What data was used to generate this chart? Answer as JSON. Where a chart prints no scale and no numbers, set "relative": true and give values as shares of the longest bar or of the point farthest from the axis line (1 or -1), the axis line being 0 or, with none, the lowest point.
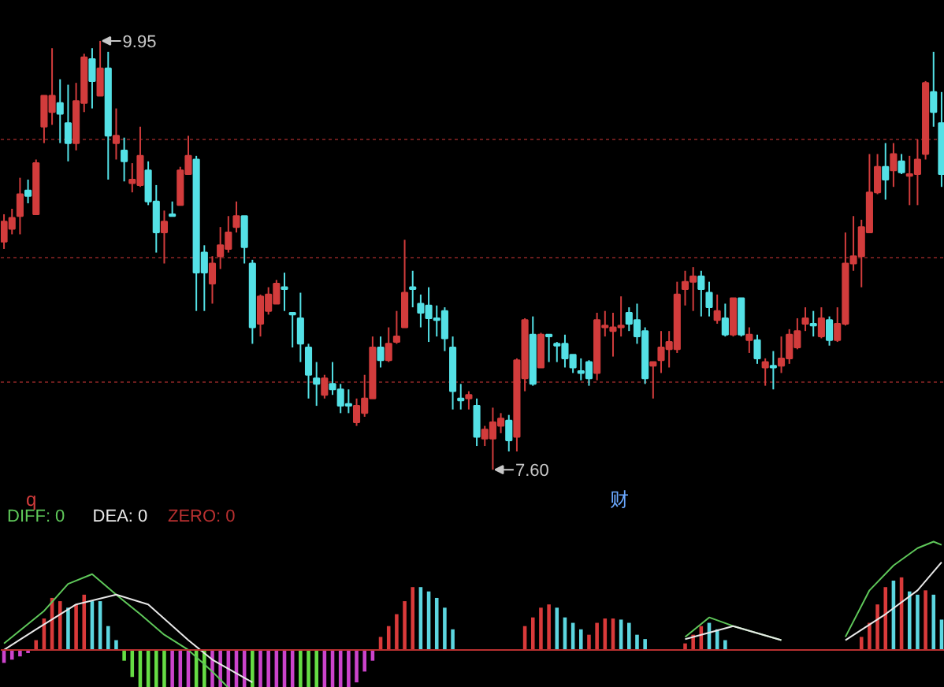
{
  "chart_data": [
    {
      "type": "candlestick",
      "categories": [
        null,
        null,
        null,
        null,
        null,
        null,
        null,
        null,
        null,
        null,
        null,
        null,
        null,
        null,
        null,
        null,
        null,
        null,
        null,
        null,
        null,
        null,
        null,
        null,
        null,
        null,
        null,
        null,
        null,
        null,
        null,
        null,
        null,
        null,
        null,
        null,
        null,
        null,
        null,
        null,
        null,
        null,
        null,
        null,
        null,
        null,
        null,
        null,
        null,
        null,
        null,
        null,
        null,
        null,
        null,
        null,
        null,
        null,
        null,
        null,
        null,
        null,
        null,
        null,
        null,
        null,
        null,
        null,
        null,
        null,
        null,
        null,
        null,
        null,
        null,
        null,
        null,
        null,
        null,
        null,
        null,
        null,
        null,
        null,
        null,
        null,
        null,
        null,
        null,
        null,
        null,
        null,
        null,
        null,
        null,
        null,
        null,
        null,
        null,
        null,
        null,
        null,
        null,
        null,
        null,
        null,
        null,
        null,
        null,
        null,
        null,
        null,
        null,
        null,
        null,
        null,
        null,
        null
      ],
      "ohlc": [
        [
          8.85,
          9.0,
          8.81,
          8.96
        ],
        [
          8.92,
          9.03,
          8.89,
          8.98
        ],
        [
          8.99,
          9.2,
          8.89,
          9.11
        ],
        [
          9.13,
          9.19,
          9.06,
          9.1
        ],
        [
          9.0,
          9.3,
          9.0,
          9.28
        ],
        [
          9.48,
          9.65,
          9.39,
          9.65
        ],
        [
          9.56,
          9.91,
          9.49,
          9.65
        ],
        [
          9.61,
          9.74,
          9.39,
          9.55
        ],
        [
          9.5,
          9.71,
          9.29,
          9.39
        ],
        [
          9.39,
          9.72,
          9.35,
          9.62
        ],
        [
          9.61,
          9.88,
          9.56,
          9.86
        ],
        [
          9.85,
          9.91,
          9.58,
          9.73
        ],
        [
          9.65,
          9.95,
          9.65,
          9.8
        ],
        [
          9.8,
          9.89,
          9.19,
          9.43
        ],
        [
          9.39,
          9.58,
          9.3,
          9.43
        ],
        [
          9.35,
          9.42,
          9.18,
          9.29
        ],
        [
          9.17,
          9.28,
          9.12,
          9.19
        ],
        [
          9.16,
          9.48,
          9.15,
          9.32
        ],
        [
          9.24,
          9.29,
          9.05,
          9.07
        ],
        [
          9.07,
          9.16,
          8.79,
          8.9
        ],
        [
          8.9,
          9.02,
          8.73,
          8.96
        ],
        [
          9.0,
          9.07,
          8.99,
          8.99
        ],
        [
          9.05,
          9.26,
          9.05,
          9.24
        ],
        [
          9.22,
          9.43,
          9.22,
          9.32
        ],
        [
          9.3,
          9.32,
          8.47,
          8.68
        ],
        [
          8.79,
          8.83,
          8.47,
          8.68
        ],
        [
          8.62,
          8.77,
          8.51,
          8.73
        ],
        [
          8.77,
          8.93,
          8.7,
          8.83
        ],
        [
          8.81,
          8.99,
          8.79,
          8.9
        ],
        [
          8.93,
          9.07,
          8.9,
          8.99
        ],
        [
          8.99,
          8.99,
          8.73,
          8.82
        ],
        [
          8.73,
          8.75,
          8.29,
          8.38
        ],
        [
          8.4,
          8.56,
          8.33,
          8.55
        ],
        [
          8.47,
          8.6,
          8.45,
          8.56
        ],
        [
          8.51,
          8.64,
          8.51,
          8.62
        ],
        [
          8.6,
          8.68,
          8.47,
          8.59
        ],
        [
          8.46,
          8.46,
          8.27,
          8.45
        ],
        [
          8.43,
          8.57,
          8.19,
          8.29
        ],
        [
          8.27,
          8.29,
          7.99,
          8.12
        ],
        [
          8.1,
          8.19,
          7.95,
          8.07
        ],
        [
          8.01,
          8.12,
          7.99,
          8.1
        ],
        [
          8.07,
          8.19,
          8.01,
          8.04
        ],
        [
          8.04,
          8.07,
          7.91,
          7.95
        ],
        [
          7.96,
          8.04,
          7.91,
          7.95
        ],
        [
          7.86,
          7.99,
          7.84,
          7.95
        ],
        [
          7.91,
          8.12,
          7.89,
          7.99
        ],
        [
          7.99,
          8.33,
          7.99,
          8.27
        ],
        [
          8.27,
          8.33,
          8.16,
          8.2
        ],
        [
          8.2,
          8.38,
          8.19,
          8.29
        ],
        [
          8.3,
          8.47,
          8.29,
          8.33
        ],
        [
          8.38,
          8.86,
          8.38,
          8.57
        ],
        [
          8.6,
          8.69,
          8.49,
          8.59
        ],
        [
          8.51,
          8.56,
          8.38,
          8.46
        ],
        [
          8.5,
          8.6,
          8.3,
          8.43
        ],
        [
          8.43,
          8.5,
          8.33,
          8.42
        ],
        [
          8.47,
          8.49,
          8.25,
          8.32
        ],
        [
          8.27,
          8.33,
          7.93,
          8.03
        ],
        [
          7.99,
          8.07,
          7.93,
          7.98
        ],
        [
          7.99,
          8.03,
          7.93,
          8.01
        ],
        [
          7.95,
          7.99,
          7.73,
          7.78
        ],
        [
          7.77,
          7.84,
          7.73,
          7.82
        ],
        [
          7.77,
          7.94,
          7.6,
          7.86
        ],
        [
          7.84,
          7.91,
          7.8,
          7.88
        ],
        [
          7.87,
          7.9,
          7.7,
          7.76
        ],
        [
          7.78,
          8.21,
          7.7,
          8.2
        ],
        [
          8.1,
          8.43,
          8.03,
          8.42
        ],
        [
          8.34,
          8.44,
          8.06,
          8.07
        ],
        [
          8.16,
          8.35,
          8.16,
          8.34
        ],
        [
          8.34,
          8.34,
          8.19,
          8.33
        ],
        [
          8.29,
          8.3,
          8.19,
          8.28
        ],
        [
          8.29,
          8.34,
          8.16,
          8.21
        ],
        [
          8.23,
          8.23,
          8.13,
          8.16
        ],
        [
          8.14,
          8.21,
          8.09,
          8.13
        ],
        [
          8.19,
          8.2,
          8.06,
          8.1
        ],
        [
          8.13,
          8.46,
          8.09,
          8.42
        ],
        [
          8.38,
          8.47,
          8.33,
          8.39
        ],
        [
          8.36,
          8.46,
          8.22,
          8.38
        ],
        [
          8.38,
          8.55,
          8.33,
          8.39
        ],
        [
          8.46,
          8.49,
          8.36,
          8.4
        ],
        [
          8.42,
          8.51,
          8.29,
          8.33
        ],
        [
          8.36,
          8.38,
          8.07,
          8.1
        ],
        [
          8.17,
          8.19,
          7.99,
          8.19
        ],
        [
          8.2,
          8.36,
          8.13,
          8.27
        ],
        [
          8.26,
          8.36,
          8.16,
          8.3
        ],
        [
          8.26,
          8.63,
          8.24,
          8.56
        ],
        [
          8.59,
          8.69,
          8.5,
          8.63
        ],
        [
          8.63,
          8.71,
          8.47,
          8.66
        ],
        [
          8.66,
          8.69,
          8.44,
          8.59
        ],
        [
          8.57,
          8.63,
          8.44,
          8.49
        ],
        [
          8.42,
          8.56,
          8.4,
          8.47
        ],
        [
          8.43,
          8.51,
          8.33,
          8.34
        ],
        [
          8.34,
          8.54,
          8.33,
          8.54
        ],
        [
          8.54,
          8.54,
          8.33,
          8.34
        ],
        [
          8.31,
          8.38,
          8.24,
          8.34
        ],
        [
          8.31,
          8.34,
          8.18,
          8.21
        ],
        [
          8.16,
          8.21,
          8.06,
          8.19
        ],
        [
          8.17,
          8.25,
          8.04,
          8.16
        ],
        [
          8.17,
          8.33,
          8.13,
          8.21
        ],
        [
          8.21,
          8.37,
          8.18,
          8.34
        ],
        [
          8.27,
          8.43,
          8.26,
          8.36
        ],
        [
          8.4,
          8.49,
          8.36,
          8.43
        ],
        [
          8.4,
          8.47,
          8.33,
          8.39
        ],
        [
          8.33,
          8.49,
          8.32,
          8.43
        ],
        [
          8.42,
          8.44,
          8.28,
          8.31
        ],
        [
          8.31,
          8.49,
          8.3,
          8.4
        ],
        [
          8.4,
          8.9,
          8.39,
          8.73
        ],
        [
          8.73,
          8.99,
          8.69,
          8.77
        ],
        [
          8.77,
          8.97,
          8.6,
          8.93
        ],
        [
          8.9,
          9.33,
          8.9,
          9.12
        ],
        [
          9.12,
          9.33,
          9.11,
          9.26
        ],
        [
          9.26,
          9.39,
          9.08,
          9.19
        ],
        [
          9.24,
          9.39,
          9.15,
          9.33
        ],
        [
          9.29,
          9.33,
          9.22,
          9.23
        ],
        [
          9.21,
          9.32,
          9.05,
          9.22
        ],
        [
          9.22,
          9.41,
          9.05,
          9.3
        ],
        [
          9.33,
          9.73,
          9.3,
          9.72
        ],
        [
          9.67,
          9.89,
          9.48,
          9.56
        ],
        [
          9.5,
          9.67,
          9.15,
          9.22
        ]
      ],
      "colors": [
        "#d23c3c",
        "#d23c3c",
        "#d23c3c",
        "#54e1e6",
        "#d23c3c",
        "#d23c3c",
        "#d23c3c",
        "#54e1e6",
        "#54e1e6",
        "#d23c3c",
        "#d23c3c",
        "#54e1e6",
        "#d23c3c",
        "#54e1e6",
        "#d23c3c",
        "#54e1e6",
        "#d23c3c",
        "#d23c3c",
        "#54e1e6",
        "#54e1e6",
        "#d23c3c",
        "#54e1e6",
        "#d23c3c",
        "#d23c3c",
        "#54e1e6",
        "#54e1e6",
        "#d23c3c",
        "#d23c3c",
        "#d23c3c",
        "#d23c3c",
        "#54e1e6",
        "#54e1e6",
        "#d23c3c",
        "#d23c3c",
        "#d23c3c",
        "#54e1e6",
        "#54e1e6",
        "#54e1e6",
        "#54e1e6",
        "#54e1e6",
        "#d23c3c",
        "#54e1e6",
        "#54e1e6",
        "#54e1e6",
        "#d23c3c",
        "#d23c3c",
        "#d23c3c",
        "#54e1e6",
        "#d23c3c",
        "#d23c3c",
        "#d23c3c",
        "#54e1e6",
        "#54e1e6",
        "#54e1e6",
        "#54e1e6",
        "#54e1e6",
        "#54e1e6",
        "#54e1e6",
        "#d23c3c",
        "#54e1e6",
        "#d23c3c",
        "#d23c3c",
        "#d23c3c",
        "#54e1e6",
        "#d23c3c",
        "#d23c3c",
        "#54e1e6",
        "#d23c3c",
        "#54e1e6",
        "#54e1e6",
        "#54e1e6",
        "#54e1e6",
        "#54e1e6",
        "#54e1e6",
        "#d23c3c",
        "#d23c3c",
        "#d23c3c",
        "#d23c3c",
        "#54e1e6",
        "#54e1e6",
        "#54e1e6",
        "#d23c3c",
        "#d23c3c",
        "#d23c3c",
        "#d23c3c",
        "#d23c3c",
        "#d23c3c",
        "#54e1e6",
        "#54e1e6",
        "#d23c3c",
        "#54e1e6",
        "#d23c3c",
        "#54e1e6",
        "#d23c3c",
        "#54e1e6",
        "#d23c3c",
        "#54e1e6",
        "#d23c3c",
        "#d23c3c",
        "#d23c3c",
        "#d23c3c",
        "#54e1e6",
        "#d23c3c",
        "#54e1e6",
        "#d23c3c",
        "#d23c3c",
        "#d23c3c",
        "#d23c3c",
        "#d23c3c",
        "#d23c3c",
        "#54e1e6",
        "#d23c3c",
        "#54e1e6",
        "#d23c3c",
        "#d23c3c",
        "#d23c3c",
        "#54e1e6",
        "#54e1e6"
      ],
      "ylim": [
        7.51,
        10.17
      ],
      "yticks": [
        {
          "value": 8.08,
          "label": null
        },
        {
          "value": 8.76,
          "label": null
        },
        {
          "value": 9.41,
          "label": null
        }
      ],
      "grid": "y",
      "annotations": [
        "9.95",
        "7.60"
      ]
    },
    {
      "type": "bar",
      "relative": true,
      "categories": [
        null,
        null,
        null,
        null,
        null,
        null,
        null,
        null,
        null,
        null,
        null,
        null,
        null,
        null,
        null,
        null,
        null,
        null,
        null,
        null,
        null,
        null,
        null,
        null,
        null,
        null,
        null,
        null,
        null,
        null,
        null,
        null,
        null,
        null,
        null,
        null,
        null,
        null,
        null,
        null,
        null,
        null,
        null,
        null,
        null,
        null,
        null,
        null,
        null,
        null,
        null,
        null,
        null,
        null,
        null,
        null,
        null,
        null,
        null,
        null,
        null,
        null,
        null,
        null,
        null,
        null,
        null,
        null,
        null,
        null,
        null,
        null,
        null,
        null,
        null,
        null,
        null,
        null,
        null,
        null,
        null,
        null,
        null,
        null,
        null,
        null,
        null,
        null,
        null,
        null,
        null,
        null,
        null,
        null,
        null,
        null,
        null,
        null,
        null,
        null,
        null,
        null,
        null,
        null,
        null,
        null,
        null,
        null,
        null,
        null,
        null,
        null,
        null,
        null,
        null,
        null,
        null,
        null
      ],
      "series": [
        {
          "type": "bar",
          "values": [
            -0.12,
            -0.09,
            -0.06,
            -0.03,
            0.09,
            0.29,
            0.48,
            0.45,
            0.39,
            0.42,
            0.51,
            0.45,
            0.45,
            0.22,
            0.09,
            -0.1,
            -0.25,
            -0.35,
            -0.35,
            -0.35,
            -0.35,
            -0.35,
            -0.35,
            -0.35,
            -0.35,
            -0.35,
            -0.35,
            -0.35,
            -0.35,
            -0.35,
            -0.35,
            -0.35,
            -0.35,
            -0.35,
            -0.35,
            -0.35,
            -0.35,
            -0.35,
            -0.35,
            -0.35,
            -0.35,
            -0.35,
            -0.35,
            -0.35,
            -0.3,
            -0.2,
            -0.1,
            0.12,
            0.22,
            0.33,
            0.45,
            0.58,
            0.58,
            0.54,
            0.48,
            0.39,
            0.19,
            null,
            null,
            null,
            null,
            null,
            null,
            null,
            null,
            0.22,
            0.3,
            0.39,
            0.42,
            0.39,
            0.3,
            0.25,
            0.19,
            0.14,
            0.25,
            0.29,
            0.29,
            0.28,
            0.25,
            0.14,
            0.1,
            null,
            null,
            null,
            null,
            0.06,
            0.14,
            0.22,
            0.25,
            0.19,
            0.09,
            null,
            null,
            null,
            null,
            null,
            null,
            null,
            null,
            null,
            null,
            null,
            null,
            null,
            null,
            null,
            null,
            0.12,
            0.25,
            0.42,
            0.58,
            0.64,
            0.67,
            0.54,
            0.51,
            0.55,
            0.51,
            0.28
          ],
          "colors": [
            "#cc44cc",
            "#cc44cc",
            "#cc44cc",
            "#cc44cc",
            "#d93a3a",
            "#d93a3a",
            "#d93a3a",
            "#d93a3a",
            "#5cd6e0",
            "#d93a3a",
            "#d93a3a",
            "#5cd6e0",
            "#5cd6e0",
            "#5cd6e0",
            "#5cd6e0",
            "#66dd44",
            "#66dd44",
            "#66dd44",
            "#66dd44",
            "#66dd44",
            "#66dd44",
            "#cc44cc",
            "#cc44cc",
            "#cc44cc",
            "#66dd44",
            "#66dd44",
            "#cc44cc",
            "#cc44cc",
            "#cc44cc",
            "#cc44cc",
            "#cc44cc",
            "#66dd44",
            "#cc44cc",
            "#cc44cc",
            "#cc44cc",
            "#cc44cc",
            "#cc44cc",
            "#66dd44",
            "#66dd44",
            "#66dd44",
            "#cc44cc",
            "#cc44cc",
            "#cc44cc",
            "#cc44cc",
            "#cc44cc",
            "#cc44cc",
            "#cc44cc",
            "#d93a3a",
            "#d93a3a",
            "#d93a3a",
            "#d93a3a",
            "#d93a3a",
            "#5cd6e0",
            "#5cd6e0",
            "#5cd6e0",
            "#5cd6e0",
            "#5cd6e0",
            null,
            null,
            null,
            null,
            null,
            null,
            null,
            null,
            "#d93a3a",
            "#d93a3a",
            "#d93a3a",
            "#d93a3a",
            "#5cd6e0",
            "#5cd6e0",
            "#5cd6e0",
            "#5cd6e0",
            "#d93a3a",
            "#d93a3a",
            "#d93a3a",
            "#d93a3a",
            "#5cd6e0",
            "#5cd6e0",
            "#5cd6e0",
            "#5cd6e0",
            null,
            null,
            null,
            null,
            "#d93a3a",
            "#d93a3a",
            "#d93a3a",
            "#5cd6e0",
            "#5cd6e0",
            "#5cd6e0",
            null,
            null,
            null,
            null,
            null,
            null,
            null,
            null,
            null,
            null,
            null,
            null,
            null,
            null,
            null,
            null,
            "#d93a3a",
            "#d93a3a",
            "#d93a3a",
            "#d93a3a",
            "#5cd6e0",
            "#d93a3a",
            "#5cd6e0",
            "#5cd6e0",
            "#d93a3a",
            "#5cd6e0",
            "#5cd6e0"
          ]
        },
        {
          "name": "DIFF: 0",
          "type": "line",
          "color": "#5fc85a",
          "values": [
            0.06,
            null,
            null,
            null,
            null,
            0.36,
            null,
            null,
            0.61,
            null,
            null,
            0.7,
            null,
            null,
            0.51,
            null,
            null,
            0.33,
            null,
            null,
            0.14,
            null,
            null,
            0.0,
            null,
            null,
            -0.2,
            null,
            -0.35,
            null,
            null,
            null,
            null,
            null,
            null,
            null,
            null,
            null,
            null,
            null,
            null,
            null,
            null,
            null,
            null,
            null,
            null,
            null,
            null,
            null,
            null,
            null,
            null,
            null,
            null,
            null,
            null,
            null,
            null,
            null,
            null,
            null,
            null,
            null,
            null,
            null,
            null,
            null,
            null,
            null,
            null,
            null,
            null,
            null,
            null,
            null,
            null,
            null,
            null,
            null,
            null,
            null,
            null,
            null,
            null,
            0.12,
            null,
            null,
            0.3,
            null,
            null,
            0.22,
            null,
            null,
            null,
            null,
            null,
            0.09,
            null,
            null,
            null,
            null,
            null,
            null,
            null,
            0.12,
            null,
            null,
            0.55,
            null,
            null,
            0.78,
            null,
            null,
            0.94,
            null,
            1.0,
            0.97
          ]
        },
        {
          "name": "DEA: 0",
          "type": "line",
          "color": "#e8e8e8",
          "values": [
            0.0,
            null,
            null,
            null,
            0.19,
            null,
            null,
            null,
            null,
            0.42,
            null,
            null,
            null,
            null,
            0.51,
            null,
            null,
            null,
            0.42,
            null,
            null,
            null,
            null,
            0.09,
            null,
            null,
            -0.09,
            null,
            null,
            null,
            null,
            -0.3,
            null,
            null,
            null,
            null,
            null,
            null,
            null,
            null,
            null,
            null,
            null,
            null,
            null,
            null,
            null,
            null,
            null,
            null,
            null,
            null,
            null,
            null,
            null,
            null,
            null,
            null,
            null,
            null,
            null,
            null,
            null,
            null,
            null,
            null,
            null,
            null,
            null,
            null,
            null,
            null,
            null,
            null,
            null,
            null,
            null,
            null,
            null,
            null,
            null,
            null,
            null,
            null,
            null,
            0.1,
            null,
            null,
            null,
            null,
            null,
            0.22,
            null,
            null,
            null,
            null,
            null,
            0.09,
            null,
            null,
            null,
            null,
            null,
            null,
            null,
            0.09,
            null,
            null,
            null,
            null,
            0.33,
            null,
            null,
            null,
            0.55,
            null,
            null,
            0.81
          ]
        }
      ],
      "ref_lines": [
        {
          "axis": "y",
          "value": 0,
          "label": "ZERO: 0",
          "color": "#b83030"
        }
      ],
      "legend": "top left",
      "annotations": [
        "q",
        "财"
      ]
    }
  ]
}
